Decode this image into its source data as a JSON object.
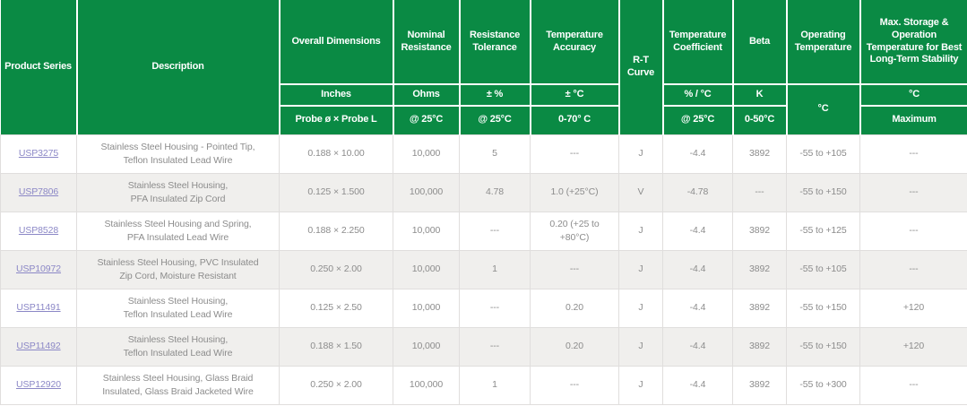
{
  "accent_color": "#0a8a44",
  "link_color": "#8b87c6",
  "alt_row_color": "#f0efed",
  "table": {
    "header": {
      "product_series": {
        "label": "Product Series"
      },
      "description": {
        "label": "Description"
      },
      "overall_dimensions": {
        "label": "Overall Dimensions",
        "unit": "Inches",
        "condition": "Probe ø × Probe L"
      },
      "nominal_resistance": {
        "label": "Nominal Resistance",
        "unit": "Ohms",
        "condition": "@ 25°C"
      },
      "resistance_tolerance": {
        "label": "Resistance Tolerance",
        "unit": "± %",
        "condition": "@ 25°C"
      },
      "temperature_accuracy": {
        "label": "Temperature Accuracy",
        "unit": "± °C",
        "condition": "0-70° C"
      },
      "rt_curve": {
        "label": "R-T Curve"
      },
      "temperature_coefficient": {
        "label": "Temperature Coefficient",
        "unit": "% / °C",
        "condition": "@ 25°C"
      },
      "beta": {
        "label": "Beta",
        "unit": "K",
        "condition": "0-50°C"
      },
      "operating_temperature": {
        "label": "Operating Temperature",
        "unit": "°C"
      },
      "max_storage": {
        "label": "Max. Storage & Operation Temperature for Best Long-Term Stability",
        "unit": "°C",
        "condition": "Maximum"
      }
    },
    "rows": [
      {
        "series": "USP3275",
        "description": "Stainless Steel Housing - Pointed Tip,\nTeflon Insulated Lead Wire",
        "dimensions": "0.188 × 10.00",
        "resistance": "10,000",
        "tolerance": "5",
        "accuracy": "---",
        "curve": "J",
        "coefficient": "-4.4",
        "beta": "3892",
        "operating": "-55 to +105",
        "max_storage": "---"
      },
      {
        "series": "USP7806",
        "description": "Stainless Steel Housing,\nPFA Insulated Zip Cord",
        "dimensions": "0.125 × 1.500",
        "resistance": "100,000",
        "tolerance": "4.78",
        "accuracy": "1.0 (+25°C)",
        "curve": "V",
        "coefficient": "-4.78",
        "beta": "---",
        "operating": "-55 to +150",
        "max_storage": "---"
      },
      {
        "series": "USP8528",
        "description": "Stainless Steel Housing and Spring,\nPFA Insulated Lead Wire",
        "dimensions": "0.188 × 2.250",
        "resistance": "10,000",
        "tolerance": "---",
        "accuracy": "0.20 (+25 to +80°C)",
        "curve": "J",
        "coefficient": "-4.4",
        "beta": "3892",
        "operating": "-55 to +125",
        "max_storage": "---"
      },
      {
        "series": "USP10972",
        "description": "Stainless Steel Housing, PVC Insulated\nZip Cord, Moisture Resistant",
        "dimensions": "0.250 × 2.00",
        "resistance": "10,000",
        "tolerance": "1",
        "accuracy": "---",
        "curve": "J",
        "coefficient": "-4.4",
        "beta": "3892",
        "operating": "-55 to +105",
        "max_storage": "---"
      },
      {
        "series": "USP11491",
        "description": "Stainless Steel Housing,\nTeflon Insulated Lead Wire",
        "dimensions": "0.125 × 2.50",
        "resistance": "10,000",
        "tolerance": "---",
        "accuracy": "0.20",
        "curve": "J",
        "coefficient": "-4.4",
        "beta": "3892",
        "operating": "-55 to +150",
        "max_storage": "+120"
      },
      {
        "series": "USP11492",
        "description": "Stainless Steel Housing,\nTeflon Insulated Lead Wire",
        "dimensions": "0.188 × 1.50",
        "resistance": "10,000",
        "tolerance": "---",
        "accuracy": "0.20",
        "curve": "J",
        "coefficient": "-4.4",
        "beta": "3892",
        "operating": "-55 to +150",
        "max_storage": "+120"
      },
      {
        "series": "USP12920",
        "description": "Stainless Steel Housing, Glass Braid\nInsulated, Glass Braid Jacketed Wire",
        "dimensions": "0.250 × 2.00",
        "resistance": "100,000",
        "tolerance": "1",
        "accuracy": "---",
        "curve": "J",
        "coefficient": "-4.4",
        "beta": "3892",
        "operating": "-55 to +300",
        "max_storage": "---"
      }
    ]
  }
}
